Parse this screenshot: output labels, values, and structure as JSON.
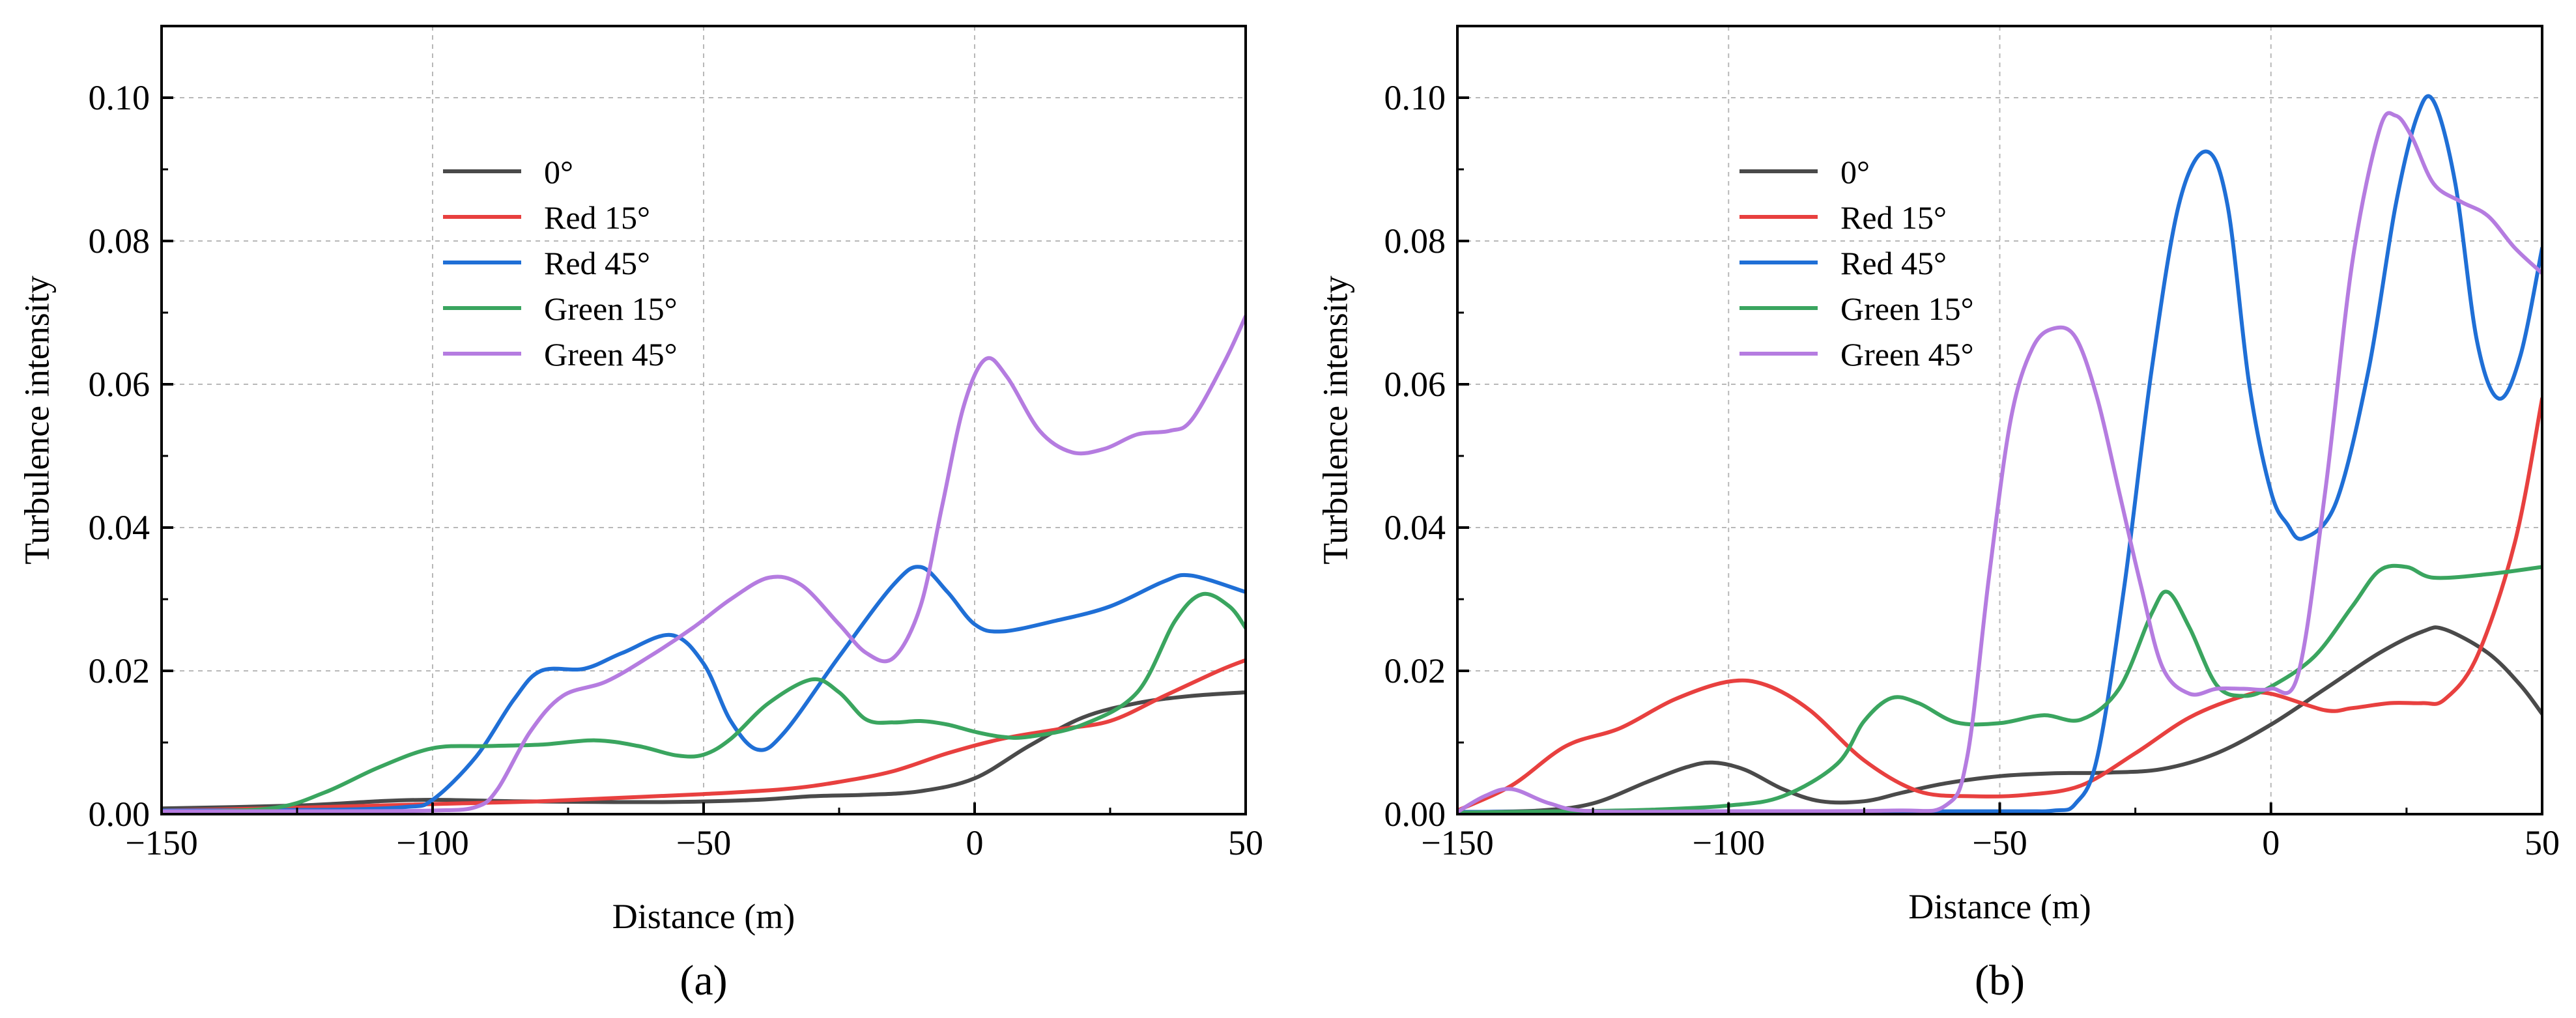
{
  "colors": {
    "deg0": "#4a4a4a",
    "red15": "#e8403f",
    "red45": "#1f6fd6",
    "green15": "#3aa55f",
    "green45": "#b57ce0",
    "grid": "#b8b8b8",
    "axis": "#000000"
  },
  "chart_data": [
    {
      "panel_label": "(a)",
      "type": "line",
      "title": "",
      "xlabel": "Distance (m)",
      "ylabel": "Turbulence intensity",
      "xlim": [
        -150,
        50
      ],
      "ylim": [
        0,
        0.11
      ],
      "xticks": [
        -150,
        -100,
        -50,
        0,
        50
      ],
      "xtick_labels": [
        "−150",
        "−100",
        "−50",
        "0",
        "50"
      ],
      "yticks": [
        0,
        0.02,
        0.04,
        0.06,
        0.08,
        0.1
      ],
      "ytick_labels": [
        "0.00",
        "0.02",
        "0.04",
        "0.06",
        "0.08",
        "0.10"
      ],
      "grid": true,
      "legend": "upper-middle",
      "series": [
        {
          "name": "0°",
          "key": "deg0",
          "points": [
            [
              -150,
              0.0008
            ],
            [
              -125,
              0.0012
            ],
            [
              -110,
              0.0018
            ],
            [
              -100,
              0.002
            ],
            [
              -85,
              0.0018
            ],
            [
              -70,
              0.0017
            ],
            [
              -55,
              0.0017
            ],
            [
              -40,
              0.002
            ],
            [
              -30,
              0.0025
            ],
            [
              -20,
              0.0027
            ],
            [
              -10,
              0.0032
            ],
            [
              0,
              0.005
            ],
            [
              10,
              0.0095
            ],
            [
              20,
              0.0135
            ],
            [
              30,
              0.0155
            ],
            [
              40,
              0.0165
            ],
            [
              50,
              0.017
            ]
          ]
        },
        {
          "name": "Red 15°",
          "key": "red15",
          "points": [
            [
              -150,
              0.0005
            ],
            [
              -130,
              0.0008
            ],
            [
              -110,
              0.0012
            ],
            [
              -95,
              0.0015
            ],
            [
              -80,
              0.0018
            ],
            [
              -65,
              0.0023
            ],
            [
              -50,
              0.0028
            ],
            [
              -35,
              0.0035
            ],
            [
              -25,
              0.0045
            ],
            [
              -15,
              0.006
            ],
            [
              -5,
              0.0085
            ],
            [
              5,
              0.0105
            ],
            [
              15,
              0.0118
            ],
            [
              25,
              0.013
            ],
            [
              35,
              0.0165
            ],
            [
              45,
              0.02
            ],
            [
              50,
              0.0215
            ]
          ]
        },
        {
          "name": "Red 45°",
          "key": "red45",
          "points": [
            [
              -150,
              0.0005
            ],
            [
              -120,
              0.0006
            ],
            [
              -105,
              0.001
            ],
            [
              -100,
              0.002
            ],
            [
              -92,
              0.008
            ],
            [
              -85,
              0.016
            ],
            [
              -80,
              0.02
            ],
            [
              -72,
              0.0203
            ],
            [
              -65,
              0.0225
            ],
            [
              -56,
              0.025
            ],
            [
              -50,
              0.021
            ],
            [
              -45,
              0.013
            ],
            [
              -40,
              0.009
            ],
            [
              -35,
              0.0115
            ],
            [
              -25,
              0.022
            ],
            [
              -15,
              0.032
            ],
            [
              -10,
              0.0345
            ],
            [
              -5,
              0.031
            ],
            [
              0,
              0.0265
            ],
            [
              5,
              0.0255
            ],
            [
              15,
              0.027
            ],
            [
              25,
              0.029
            ],
            [
              35,
              0.0325
            ],
            [
              40,
              0.0333
            ],
            [
              50,
              0.031
            ]
          ]
        },
        {
          "name": "Green 15°",
          "key": "green15",
          "points": [
            [
              -150,
              0.0003
            ],
            [
              -130,
              0.0008
            ],
            [
              -120,
              0.003
            ],
            [
              -110,
              0.0065
            ],
            [
              -100,
              0.0092
            ],
            [
              -90,
              0.0095
            ],
            [
              -80,
              0.0097
            ],
            [
              -70,
              0.0103
            ],
            [
              -62,
              0.0095
            ],
            [
              -55,
              0.0082
            ],
            [
              -50,
              0.0083
            ],
            [
              -45,
              0.0105
            ],
            [
              -38,
              0.0155
            ],
            [
              -30,
              0.0188
            ],
            [
              -25,
              0.017
            ],
            [
              -20,
              0.0132
            ],
            [
              -15,
              0.0128
            ],
            [
              -10,
              0.013
            ],
            [
              -5,
              0.0125
            ],
            [
              0,
              0.0115
            ],
            [
              5,
              0.0108
            ],
            [
              10,
              0.0108
            ],
            [
              20,
              0.0125
            ],
            [
              30,
              0.017
            ],
            [
              37,
              0.027
            ],
            [
              42,
              0.0307
            ],
            [
              47,
              0.029
            ],
            [
              50,
              0.026
            ]
          ]
        },
        {
          "name": "Green 45°",
          "key": "green45",
          "points": [
            [
              -150,
              0.0004
            ],
            [
              -120,
              0.0004
            ],
            [
              -100,
              0.0005
            ],
            [
              -92,
              0.001
            ],
            [
              -88,
              0.0035
            ],
            [
              -82,
              0.0115
            ],
            [
              -76,
              0.0165
            ],
            [
              -68,
              0.0185
            ],
            [
              -60,
              0.022
            ],
            [
              -52,
              0.026
            ],
            [
              -45,
              0.03
            ],
            [
              -38,
              0.033
            ],
            [
              -32,
              0.032
            ],
            [
              -25,
              0.0265
            ],
            [
              -20,
              0.0225
            ],
            [
              -15,
              0.0218
            ],
            [
              -10,
              0.029
            ],
            [
              -6,
              0.043
            ],
            [
              -2,
              0.057
            ],
            [
              2,
              0.0635
            ],
            [
              6,
              0.061
            ],
            [
              12,
              0.0535
            ],
            [
              18,
              0.0505
            ],
            [
              24,
              0.051
            ],
            [
              30,
              0.053
            ],
            [
              36,
              0.0535
            ],
            [
              40,
              0.055
            ],
            [
              46,
              0.063
            ],
            [
              50,
              0.0695
            ]
          ]
        }
      ]
    },
    {
      "panel_label": "(b)",
      "type": "line",
      "title": "",
      "xlabel": "Distance (m)",
      "ylabel": "Turbulence intensity",
      "xlim": [
        -150,
        50
      ],
      "ylim": [
        0,
        0.11
      ],
      "xticks": [
        -150,
        -100,
        -50,
        0,
        50
      ],
      "xtick_labels": [
        "−150",
        "−100",
        "−50",
        "0",
        "50"
      ],
      "yticks": [
        0,
        0.02,
        0.04,
        0.06,
        0.08,
        0.1
      ],
      "ytick_labels": [
        "0.00",
        "0.02",
        "0.04",
        "0.06",
        "0.08",
        "0.10"
      ],
      "grid": true,
      "legend": "upper-left",
      "series": [
        {
          "name": "0°",
          "key": "deg0",
          "points": [
            [
              -150,
              0.0003
            ],
            [
              -135,
              0.0005
            ],
            [
              -125,
              0.0015
            ],
            [
              -115,
              0.0045
            ],
            [
              -108,
              0.0065
            ],
            [
              -103,
              0.0072
            ],
            [
              -97,
              0.0062
            ],
            [
              -90,
              0.0035
            ],
            [
              -83,
              0.0018
            ],
            [
              -75,
              0.0018
            ],
            [
              -68,
              0.003
            ],
            [
              -60,
              0.0043
            ],
            [
              -50,
              0.0053
            ],
            [
              -40,
              0.0057
            ],
            [
              -30,
              0.0058
            ],
            [
              -20,
              0.0063
            ],
            [
              -10,
              0.0085
            ],
            [
              0,
              0.0125
            ],
            [
              10,
              0.0175
            ],
            [
              20,
              0.0225
            ],
            [
              28,
              0.0255
            ],
            [
              32,
              0.0258
            ],
            [
              40,
              0.0225
            ],
            [
              46,
              0.018
            ],
            [
              50,
              0.014
            ]
          ]
        },
        {
          "name": "Red 15°",
          "key": "red15",
          "points": [
            [
              -150,
              0.0005
            ],
            [
              -140,
              0.004
            ],
            [
              -130,
              0.0095
            ],
            [
              -120,
              0.012
            ],
            [
              -110,
              0.016
            ],
            [
              -100,
              0.0185
            ],
            [
              -93,
              0.018
            ],
            [
              -85,
              0.0145
            ],
            [
              -75,
              0.0075
            ],
            [
              -65,
              0.0032
            ],
            [
              -55,
              0.0025
            ],
            [
              -45,
              0.0027
            ],
            [
              -35,
              0.004
            ],
            [
              -25,
              0.0085
            ],
            [
              -15,
              0.0135
            ],
            [
              -5,
              0.0165
            ],
            [
              0,
              0.0168
            ],
            [
              10,
              0.0145
            ],
            [
              15,
              0.0148
            ],
            [
              22,
              0.0155
            ],
            [
              28,
              0.0155
            ],
            [
              32,
              0.016
            ],
            [
              38,
              0.022
            ],
            [
              45,
              0.038
            ],
            [
              50,
              0.058
            ]
          ]
        },
        {
          "name": "Red 45°",
          "key": "red45",
          "points": [
            [
              -150,
              0.0003
            ],
            [
              -100,
              0.0004
            ],
            [
              -50,
              0.0004
            ],
            [
              -40,
              0.0005
            ],
            [
              -36,
              0.0015
            ],
            [
              -32,
              0.008
            ],
            [
              -27,
              0.032
            ],
            [
              -22,
              0.062
            ],
            [
              -17,
              0.085
            ],
            [
              -12,
              0.0925
            ],
            [
              -8,
              0.085
            ],
            [
              -4,
              0.06
            ],
            [
              0,
              0.045
            ],
            [
              3,
              0.0405
            ],
            [
              6,
              0.0385
            ],
            [
              12,
              0.0435
            ],
            [
              18,
              0.062
            ],
            [
              23,
              0.085
            ],
            [
              27,
              0.0975
            ],
            [
              30,
              0.0995
            ],
            [
              34,
              0.088
            ],
            [
              38,
              0.066
            ],
            [
              42,
              0.058
            ],
            [
              46,
              0.064
            ],
            [
              50,
              0.079
            ]
          ]
        },
        {
          "name": "Green 15°",
          "key": "green15",
          "points": [
            [
              -150,
              0.0002
            ],
            [
              -130,
              0.0004
            ],
            [
              -115,
              0.0006
            ],
            [
              -100,
              0.0012
            ],
            [
              -90,
              0.0025
            ],
            [
              -80,
              0.007
            ],
            [
              -75,
              0.013
            ],
            [
              -70,
              0.0162
            ],
            [
              -65,
              0.0155
            ],
            [
              -58,
              0.0128
            ],
            [
              -50,
              0.0127
            ],
            [
              -42,
              0.0138
            ],
            [
              -35,
              0.0132
            ],
            [
              -28,
              0.0175
            ],
            [
              -22,
              0.028
            ],
            [
              -19,
              0.031
            ],
            [
              -15,
              0.026
            ],
            [
              -10,
              0.018
            ],
            [
              -5,
              0.0165
            ],
            [
              0,
              0.0178
            ],
            [
              8,
              0.022
            ],
            [
              15,
              0.029
            ],
            [
              20,
              0.034
            ],
            [
              25,
              0.0345
            ],
            [
              30,
              0.033
            ],
            [
              40,
              0.0335
            ],
            [
              50,
              0.0345
            ]
          ]
        },
        {
          "name": "Green 45°",
          "key": "green45",
          "points": [
            [
              -150,
              0.0003
            ],
            [
              -145,
              0.0025
            ],
            [
              -140,
              0.0035
            ],
            [
              -133,
              0.0015
            ],
            [
              -125,
              0.0004
            ],
            [
              -100,
              0.0004
            ],
            [
              -70,
              0.0005
            ],
            [
              -60,
              0.0012
            ],
            [
              -56,
              0.008
            ],
            [
              -52,
              0.033
            ],
            [
              -48,
              0.055
            ],
            [
              -44,
              0.065
            ],
            [
              -40,
              0.0678
            ],
            [
              -36,
              0.0665
            ],
            [
              -32,
              0.058
            ],
            [
              -28,
              0.045
            ],
            [
              -24,
              0.032
            ],
            [
              -20,
              0.0205
            ],
            [
              -15,
              0.0168
            ],
            [
              -10,
              0.0175
            ],
            [
              -5,
              0.0175
            ],
            [
              0,
              0.0175
            ],
            [
              5,
              0.0195
            ],
            [
              10,
              0.045
            ],
            [
              15,
              0.077
            ],
            [
              20,
              0.0955
            ],
            [
              23,
              0.0975
            ],
            [
              26,
              0.0945
            ],
            [
              30,
              0.088
            ],
            [
              35,
              0.0855
            ],
            [
              40,
              0.0835
            ],
            [
              45,
              0.079
            ],
            [
              50,
              0.0755
            ]
          ]
        }
      ]
    }
  ]
}
